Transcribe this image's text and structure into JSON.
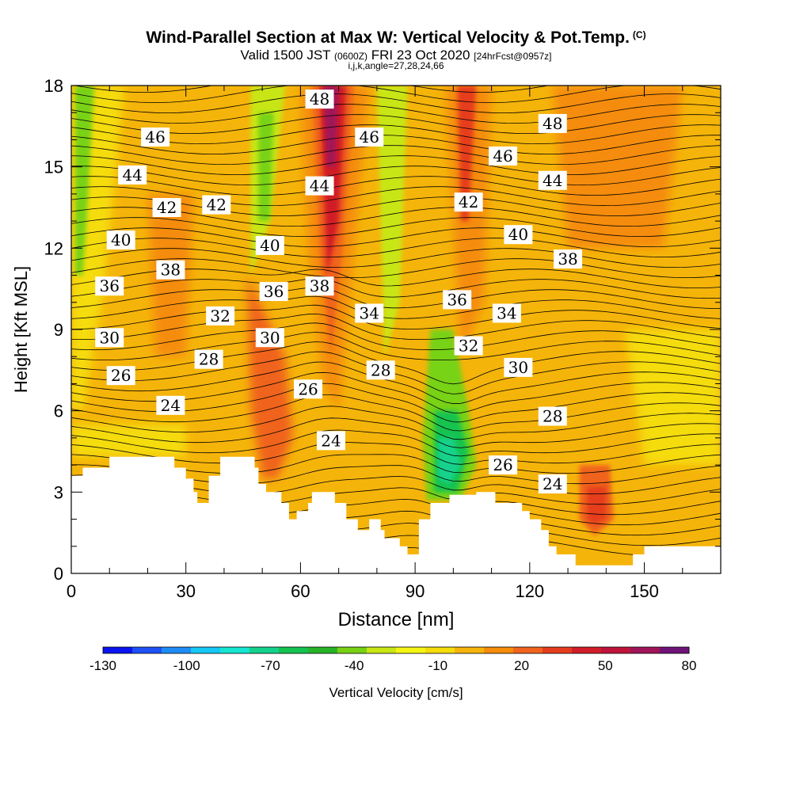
{
  "titles": {
    "main": "Wind-Parallel Section at Max W: Vertical Velocity & Pot.Temp.",
    "copyright": "(C)",
    "valid_prefix": "Valid 1500 JST",
    "valid_utc": "(0600Z)",
    "valid_date": "FRI 23 Oct 2020",
    "valid_fcst": "[24hrFcst@0957z]",
    "indices": "i,j,k,angle=27,28,24,66"
  },
  "chart_data": {
    "type": "heatmap",
    "xlabel": "Distance [nm]",
    "ylabel": "Height [Kft MSL]",
    "xlim": [
      0,
      170
    ],
    "ylim": [
      0,
      18
    ],
    "x_ticks": [
      "0",
      "30",
      "60",
      "90",
      "120",
      "150"
    ],
    "y_ticks": [
      "0",
      "3",
      "6",
      "9",
      "12",
      "15",
      "18"
    ],
    "colorbar": {
      "label": "Vertical Velocity [cm/s]",
      "tick_labels": [
        "-130",
        "-100",
        "-70",
        "-40",
        "-10",
        "20",
        "50",
        "80"
      ],
      "colors": [
        "#0a14f0",
        "#1e50f5",
        "#1e8cf5",
        "#14c8f5",
        "#14e6d2",
        "#14d28c",
        "#14c350",
        "#28b428",
        "#78d214",
        "#c8e614",
        "#f5f514",
        "#f5dc0a",
        "#f5b40a",
        "#f58c0a",
        "#f0641e",
        "#e63c1e",
        "#d21e28",
        "#be143c",
        "#a0145a",
        "#6e1478"
      ]
    },
    "background_field": {
      "description_free": true,
      "dominant_value_range": [
        -10,
        20
      ]
    },
    "updraft_max": {
      "x": 69,
      "y_range": [
        9,
        18
      ],
      "value_approx": 60
    },
    "updraft_secondary": [
      {
        "x": 52,
        "y_range": [
          3,
          11
        ],
        "value_approx": 30
      },
      {
        "x": 104,
        "y_range": [
          8,
          18
        ],
        "value_approx": 30
      },
      {
        "x": 137,
        "y": 2.5,
        "value_approx": 45
      }
    ],
    "downdrafts": [
      {
        "x": 98,
        "y_range": [
          2.5,
          7
        ],
        "value_approx": -60
      },
      {
        "x": 3,
        "y_range": [
          11,
          18
        ],
        "value_approx": -40
      },
      {
        "x": 54,
        "y_range": [
          12,
          18
        ],
        "value_approx": -35
      },
      {
        "x": 84,
        "y_range": [
          10,
          18
        ],
        "value_approx": -30
      }
    ],
    "contour_labels": [
      {
        "text": "48",
        "x": 65,
        "y": 17.5
      },
      {
        "text": "46",
        "x": 22,
        "y": 16.1
      },
      {
        "text": "46",
        "x": 78,
        "y": 16.1
      },
      {
        "text": "48",
        "x": 126,
        "y": 16.6
      },
      {
        "text": "46",
        "x": 113,
        "y": 15.4
      },
      {
        "text": "44",
        "x": 16,
        "y": 14.7
      },
      {
        "text": "44",
        "x": 65,
        "y": 14.3
      },
      {
        "text": "44",
        "x": 126,
        "y": 14.5
      },
      {
        "text": "42",
        "x": 25,
        "y": 13.5
      },
      {
        "text": "42",
        "x": 38,
        "y": 13.6
      },
      {
        "text": "42",
        "x": 104,
        "y": 13.7
      },
      {
        "text": "40",
        "x": 13,
        "y": 12.3
      },
      {
        "text": "40",
        "x": 52,
        "y": 12.1
      },
      {
        "text": "40",
        "x": 117,
        "y": 12.5
      },
      {
        "text": "38",
        "x": 26,
        "y": 11.2
      },
      {
        "text": "38",
        "x": 130,
        "y": 11.6
      },
      {
        "text": "36",
        "x": 10,
        "y": 10.6
      },
      {
        "text": "36",
        "x": 53,
        "y": 10.4
      },
      {
        "text": "38",
        "x": 65,
        "y": 10.6
      },
      {
        "text": "36",
        "x": 101,
        "y": 10.1
      },
      {
        "text": "34",
        "x": 78,
        "y": 9.6
      },
      {
        "text": "34",
        "x": 114,
        "y": 9.6
      },
      {
        "text": "32",
        "x": 39,
        "y": 9.5
      },
      {
        "text": "30",
        "x": 10,
        "y": 8.7
      },
      {
        "text": "30",
        "x": 52,
        "y": 8.7
      },
      {
        "text": "32",
        "x": 104,
        "y": 8.4
      },
      {
        "text": "28",
        "x": 36,
        "y": 7.9
      },
      {
        "text": "28",
        "x": 81,
        "y": 7.5
      },
      {
        "text": "30",
        "x": 117,
        "y": 7.6
      },
      {
        "text": "26",
        "x": 13,
        "y": 7.3
      },
      {
        "text": "26",
        "x": 62,
        "y": 6.8
      },
      {
        "text": "24",
        "x": 26,
        "y": 6.2
      },
      {
        "text": "28",
        "x": 126,
        "y": 5.8
      },
      {
        "text": "24",
        "x": 68,
        "y": 4.9
      },
      {
        "text": "26",
        "x": 113,
        "y": 4
      },
      {
        "text": "24",
        "x": 126,
        "y": 3.3
      }
    ],
    "terrain_top_profile": [
      [
        0,
        3.6
      ],
      [
        3,
        3.6
      ],
      [
        3,
        3.9
      ],
      [
        10,
        3.9
      ],
      [
        10,
        4.3
      ],
      [
        27,
        4.3
      ],
      [
        27,
        3.9
      ],
      [
        30,
        3.9
      ],
      [
        30,
        3.5
      ],
      [
        32,
        3.5
      ],
      [
        32,
        3
      ],
      [
        33,
        3
      ],
      [
        33,
        2.6
      ],
      [
        36,
        2.6
      ],
      [
        36,
        3.6
      ],
      [
        39,
        3.6
      ],
      [
        39,
        4.3
      ],
      [
        48,
        4.3
      ],
      [
        48,
        3.9
      ],
      [
        49,
        3.9
      ],
      [
        49,
        3.3
      ],
      [
        51,
        3.3
      ],
      [
        51,
        3
      ],
      [
        55,
        3
      ],
      [
        55,
        2.6
      ],
      [
        57,
        2.6
      ],
      [
        57,
        2
      ],
      [
        59,
        2
      ],
      [
        59,
        2.3
      ],
      [
        62,
        2.3
      ],
      [
        62,
        2.6
      ],
      [
        63,
        2.6
      ],
      [
        63,
        3
      ],
      [
        69,
        3
      ],
      [
        69,
        2.6
      ],
      [
        72,
        2.6
      ],
      [
        72,
        2
      ],
      [
        75,
        2
      ],
      [
        75,
        1.6
      ],
      [
        78,
        1.6
      ],
      [
        78,
        2
      ],
      [
        81,
        2
      ],
      [
        81,
        1.6
      ],
      [
        82,
        1.6
      ],
      [
        82,
        1.3
      ],
      [
        86,
        1.3
      ],
      [
        86,
        1
      ],
      [
        88,
        1
      ],
      [
        88,
        0.7
      ],
      [
        91,
        0.7
      ],
      [
        91,
        2
      ],
      [
        94,
        2
      ],
      [
        94,
        2.6
      ],
      [
        99,
        2.6
      ],
      [
        99,
        2.9
      ],
      [
        106,
        2.9
      ],
      [
        106,
        3
      ],
      [
        111,
        3
      ],
      [
        111,
        2.6
      ],
      [
        118,
        2.6
      ],
      [
        118,
        2.3
      ],
      [
        120,
        2.3
      ],
      [
        120,
        2
      ],
      [
        123,
        2
      ],
      [
        123,
        1.6
      ],
      [
        125,
        1.6
      ],
      [
        125,
        1
      ],
      [
        127,
        1
      ],
      [
        127,
        0.7
      ],
      [
        132,
        0.7
      ],
      [
        132,
        0.3
      ],
      [
        147,
        0.3
      ],
      [
        147,
        0.7
      ],
      [
        150,
        0.7
      ],
      [
        150,
        1
      ],
      [
        170,
        1
      ]
    ]
  }
}
